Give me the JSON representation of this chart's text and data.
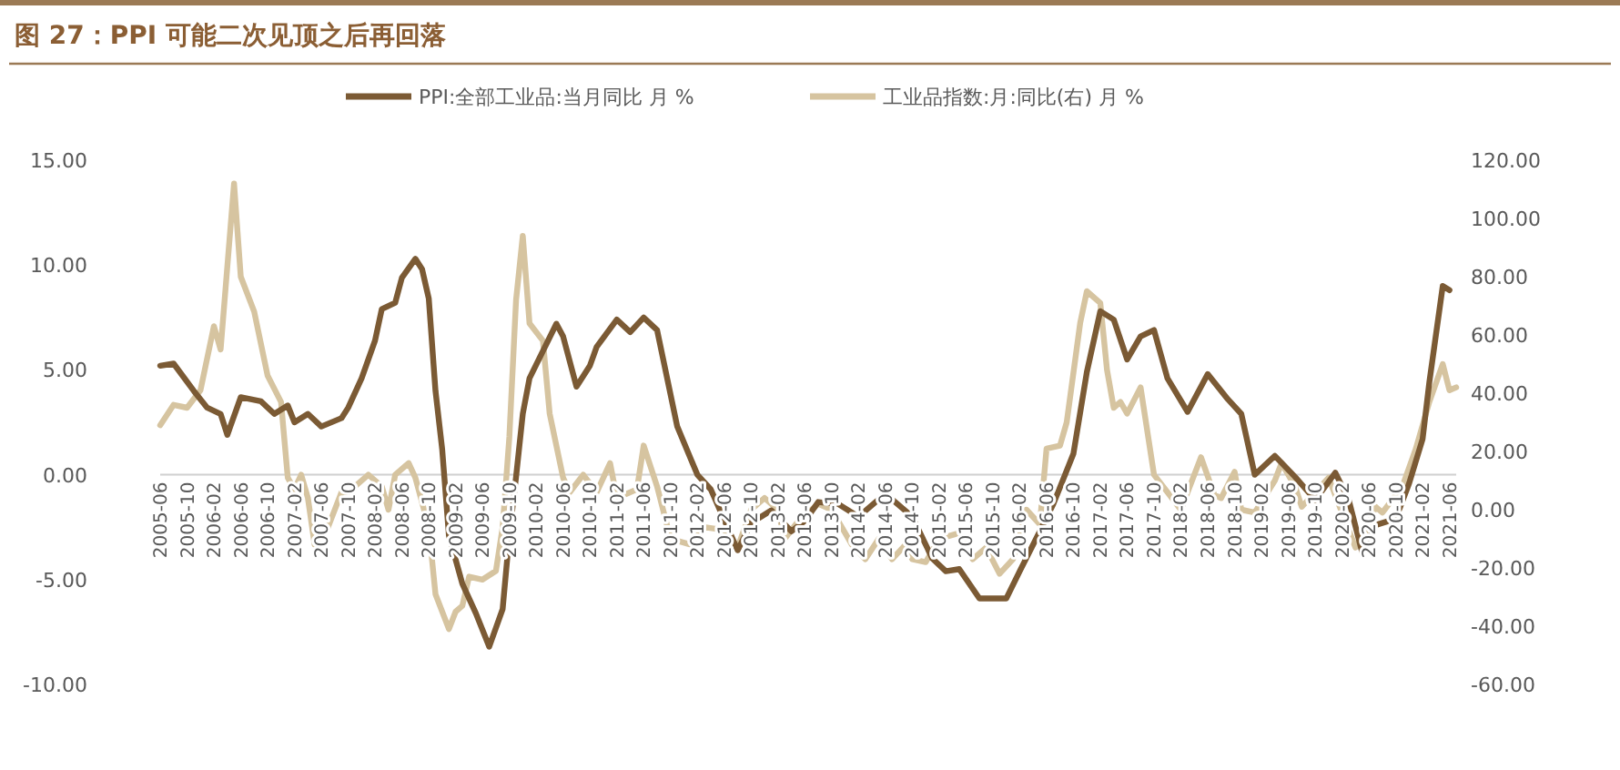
{
  "chart_data": {
    "type": "line",
    "title": "图 27：PPI 可能二次见顶之后再回落",
    "series": [
      {
        "name": "PPI:全部工业品:当月同比 月 %",
        "color": "#7b5a34",
        "axis": "y",
        "x": [
          "2005-06",
          "2005-08",
          "2005-11",
          "2006-01",
          "2006-03",
          "2006-04",
          "2006-06",
          "2006-09",
          "2006-11",
          "2007-01",
          "2007-02",
          "2007-04",
          "2007-06",
          "2007-09",
          "2007-10",
          "2007-12",
          "2008-02",
          "2008-03",
          "2008-05",
          "2008-06",
          "2008-08",
          "2008-09",
          "2008-10",
          "2008-11",
          "2008-12",
          "2009-01",
          "2009-03",
          "2009-05",
          "2009-07",
          "2009-09",
          "2009-10",
          "2009-11",
          "2009-12",
          "2010-01",
          "2010-05",
          "2010-06",
          "2010-08",
          "2010-10",
          "2010-11",
          "2011-02",
          "2011-04",
          "2011-06",
          "2011-08",
          "2011-11",
          "2012-02",
          "2012-04",
          "2012-08",
          "2012-10",
          "2013-01",
          "2013-04",
          "2013-06",
          "2013-08",
          "2013-11",
          "2014-02",
          "2014-06",
          "2014-10",
          "2015-01",
          "2015-03",
          "2015-05",
          "2015-08",
          "2015-12",
          "2016-02",
          "2016-05",
          "2016-07",
          "2016-10",
          "2016-12",
          "2017-02",
          "2017-04",
          "2017-06",
          "2017-08",
          "2017-10",
          "2017-12",
          "2018-03",
          "2018-06",
          "2018-09",
          "2018-11",
          "2019-01",
          "2019-04",
          "2019-07",
          "2019-10",
          "2020-01",
          "2020-03",
          "2020-05",
          "2020-07",
          "2020-10",
          "2020-12",
          "2021-02",
          "2021-03",
          "2021-05",
          "2021-06"
        ],
        "values": [
          5.2,
          5.3,
          4.0,
          3.2,
          2.9,
          1.9,
          3.7,
          3.5,
          2.9,
          3.3,
          2.5,
          2.9,
          2.3,
          2.7,
          3.2,
          4.6,
          6.4,
          7.9,
          8.2,
          9.4,
          10.3,
          9.8,
          8.4,
          4.0,
          1.2,
          -2.9,
          -5.2,
          -6.6,
          -8.2,
          -6.4,
          -2.9,
          -0.1,
          2.9,
          4.6,
          7.2,
          6.6,
          4.2,
          5.2,
          6.1,
          7.4,
          6.8,
          7.5,
          6.9,
          2.3,
          0.0,
          -0.7,
          -3.6,
          -2.3,
          -1.7,
          -2.7,
          -2.2,
          -1.3,
          -1.4,
          -2.0,
          -0.9,
          -2.0,
          -4.0,
          -4.6,
          -4.5,
          -5.9,
          -5.9,
          -4.6,
          -2.7,
          -1.4,
          1.0,
          4.9,
          7.8,
          7.4,
          5.5,
          6.6,
          6.9,
          4.6,
          3.0,
          4.8,
          3.6,
          2.9,
          0.0,
          0.9,
          -0.1,
          -1.2,
          0.1,
          -1.2,
          -3.7,
          -2.4,
          -2.1,
          -0.4,
          1.7,
          4.4,
          9.0,
          8.8
        ]
      },
      {
        "name": "工业品指数:月:同比(右) 月 %",
        "color": "#d6c4a0",
        "axis": "y2",
        "x": [
          "2005-06",
          "2005-08",
          "2005-10",
          "2005-12",
          "2006-02",
          "2006-03",
          "2006-05",
          "2006-06",
          "2006-08",
          "2006-10",
          "2006-12",
          "2007-01",
          "2007-02",
          "2007-03",
          "2007-04",
          "2007-05",
          "2007-07",
          "2007-09",
          "2007-10",
          "2008-01",
          "2008-03",
          "2008-04",
          "2008-05",
          "2008-07",
          "2008-08",
          "2008-10",
          "2008-11",
          "2009-01",
          "2009-02",
          "2009-03",
          "2009-04",
          "2009-06",
          "2009-08",
          "2009-09",
          "2009-10",
          "2009-11",
          "2009-12",
          "2010-01",
          "2010-03",
          "2010-04",
          "2010-06",
          "2010-07",
          "2010-09",
          "2010-11",
          "2011-01",
          "2011-02",
          "2011-05",
          "2011-06",
          "2011-08",
          "2011-10",
          "2012-01",
          "2012-03",
          "2012-06",
          "2012-08",
          "2012-10",
          "2012-12",
          "2013-02",
          "2013-03",
          "2013-05",
          "2013-08",
          "2013-10",
          "2014-01",
          "2014-03",
          "2014-05",
          "2014-07",
          "2014-09",
          "2014-10",
          "2014-12",
          "2015-02",
          "2015-05",
          "2015-07",
          "2015-09",
          "2015-11",
          "2016-01",
          "2016-03",
          "2016-05",
          "2016-06",
          "2016-08",
          "2016-09",
          "2016-11",
          "2016-12",
          "2017-02",
          "2017-03",
          "2017-04",
          "2017-05",
          "2017-06",
          "2017-08",
          "2017-10",
          "2017-12",
          "2018-02",
          "2018-05",
          "2018-07",
          "2018-08",
          "2018-10",
          "2018-11",
          "2019-01",
          "2019-04",
          "2019-05",
          "2019-07",
          "2019-08",
          "2019-10",
          "2019-12",
          "2020-01",
          "2020-04",
          "2020-05",
          "2020-07",
          "2020-08",
          "2020-11",
          "2021-01",
          "2021-03",
          "2021-05",
          "2021-06",
          "2021-07"
        ],
        "values": [
          29,
          36,
          35,
          41,
          63,
          55,
          112,
          80,
          68,
          46,
          37,
          11,
          7,
          12,
          4,
          -12,
          -6,
          6,
          6,
          12,
          8,
          0,
          12,
          16,
          11,
          -6,
          -29,
          -41,
          -35,
          -33,
          -23,
          -24,
          -21,
          -6,
          25,
          72,
          94,
          64,
          58,
          33,
          11,
          6,
          12,
          6,
          16,
          4,
          7,
          22,
          8,
          -10,
          -12,
          -6,
          -7,
          -13,
          0,
          4,
          0,
          -10,
          -4,
          2,
          0,
          -12,
          -17,
          -10,
          -17,
          -12,
          -17,
          -18,
          -10,
          -8,
          -17,
          -13,
          -22,
          -17,
          0,
          -5,
          21,
          22,
          30,
          64,
          75,
          71,
          48,
          35,
          37,
          33,
          42,
          12,
          6,
          0,
          18,
          5,
          4,
          13,
          0,
          -1,
          10,
          16,
          8,
          1,
          6,
          11,
          5,
          -13,
          -10,
          1,
          -1,
          8,
          21,
          37,
          50,
          41,
          42
        ]
      }
    ],
    "xlim": [
      "2005-06",
      "2021-07"
    ],
    "xticks": [
      "2005-06",
      "2005-10",
      "2006-02",
      "2006-06",
      "2006-10",
      "2007-02",
      "2007-06",
      "2007-10",
      "2008-02",
      "2008-06",
      "2008-10",
      "2009-02",
      "2009-06",
      "2009-10",
      "2010-02",
      "2010-06",
      "2010-10",
      "2011-02",
      "2011-06",
      "2011-10",
      "2012-02",
      "2012-06",
      "2012-10",
      "2013-02",
      "2013-06",
      "2013-10",
      "2014-02",
      "2014-06",
      "2014-10",
      "2015-02",
      "2015-06",
      "2015-10",
      "2016-02",
      "2016-06",
      "2016-10",
      "2017-02",
      "2017-06",
      "2017-10",
      "2018-02",
      "2018-06",
      "2018-10",
      "2019-02",
      "2019-06",
      "2019-10",
      "2020-02",
      "2020-06",
      "2020-10",
      "2021-02",
      "2021-06"
    ],
    "ylim": [
      -10,
      15
    ],
    "yticks": [
      {
        "value": -10,
        "label": "-10.00"
      },
      {
        "value": -5,
        "label": "-5.00"
      },
      {
        "value": 0,
        "label": "0.00"
      },
      {
        "value": 5,
        "label": "5.00"
      },
      {
        "value": 10,
        "label": "10.00"
      },
      {
        "value": 15,
        "label": "15.00"
      }
    ],
    "y2lim": [
      -60,
      120
    ],
    "y2ticks": [
      {
        "value": -60,
        "label": "-60.00"
      },
      {
        "value": -40,
        "label": "-40.00"
      },
      {
        "value": -20,
        "label": "-20.00"
      },
      {
        "value": 0,
        "label": "0.00"
      },
      {
        "value": 20,
        "label": "20.00"
      },
      {
        "value": 40,
        "label": "40.00"
      },
      {
        "value": 60,
        "label": "60.00"
      },
      {
        "value": 80,
        "label": "80.00"
      },
      {
        "value": 100,
        "label": "100.00"
      },
      {
        "value": 120,
        "label": "120.00"
      }
    ],
    "legend": "top",
    "line_style": "solid"
  }
}
